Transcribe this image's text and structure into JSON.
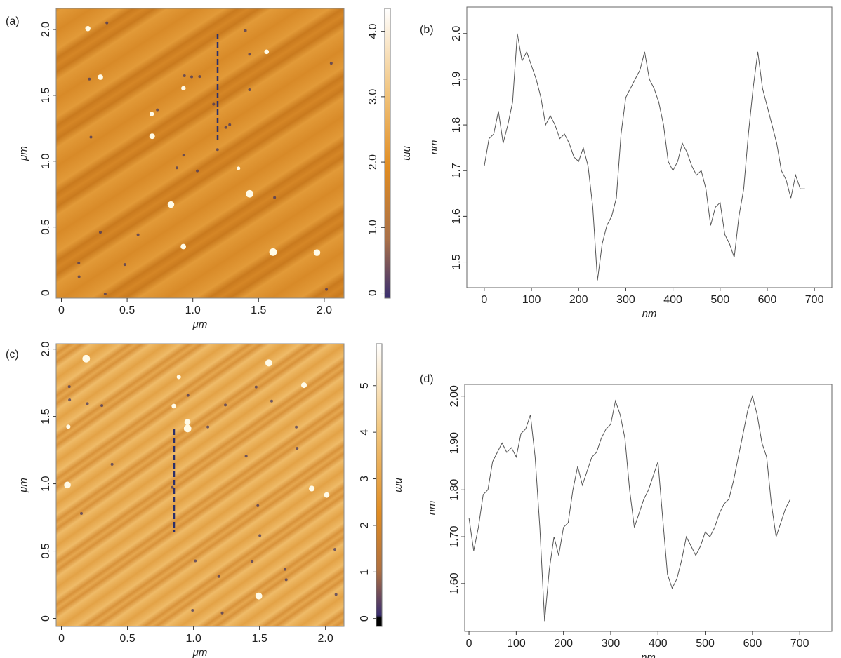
{
  "chart_data": [
    {
      "type": "image",
      "label": "(a)",
      "xlabel": "μm",
      "ylabel": "μm",
      "xlim": [
        -0.04,
        2.15
      ],
      "ylim": [
        -0.04,
        2.16
      ],
      "xticks": [
        0,
        0.5,
        {
          "value": 1,
          "label": "1.0"
        },
        1.5,
        {
          "value": 2,
          "label": "2.0"
        }
      ],
      "yticks": [
        0,
        0.5,
        {
          "value": 1,
          "label": "1.0"
        },
        1.5,
        {
          "value": 2,
          "label": "2.0"
        }
      ],
      "colorbar": {
        "label": "nm",
        "lim": [
          -0.08,
          4.35
        ],
        "ticks": [
          0,
          {
            "value": 1,
            "label": "1.0"
          },
          {
            "value": 2,
            "label": "2.0"
          },
          {
            "value": 3,
            "label": "3.0"
          },
          {
            "value": 4,
            "label": "4.0"
          }
        ]
      }
    },
    {
      "type": "line",
      "label": "(b)",
      "xlabel": "nm",
      "ylabel": "nm",
      "color": "#555555",
      "xlim": [
        -37,
        737
      ],
      "ylim": [
        1.444,
        2.058
      ],
      "xticks": [
        0,
        100,
        200,
        300,
        400,
        500,
        600,
        700
      ],
      "yticks": [
        1.5,
        1.6,
        1.7,
        1.8,
        1.9,
        {
          "value": 2,
          "label": "2.0"
        }
      ],
      "x": [
        0,
        10,
        20,
        30,
        40,
        50,
        60,
        70,
        80,
        90,
        100,
        110,
        120,
        130,
        140,
        150,
        160,
        170,
        180,
        190,
        200,
        210,
        220,
        230,
        240,
        250,
        260,
        270,
        280,
        290,
        300,
        310,
        320,
        330,
        340,
        350,
        360,
        370,
        380,
        390,
        400,
        410,
        420,
        430,
        440,
        450,
        460,
        470,
        480,
        490,
        500,
        510,
        520,
        530,
        540,
        550,
        560,
        570,
        580,
        590,
        600,
        610,
        620,
        630,
        640,
        650,
        660,
        670,
        680
      ],
      "values": [
        1.71,
        1.77,
        1.78,
        1.83,
        1.76,
        1.8,
        1.85,
        2.0,
        1.94,
        1.96,
        1.93,
        1.9,
        1.86,
        1.8,
        1.82,
        1.8,
        1.77,
        1.78,
        1.76,
        1.73,
        1.72,
        1.75,
        1.71,
        1.62,
        1.46,
        1.54,
        1.58,
        1.6,
        1.64,
        1.78,
        1.86,
        1.88,
        1.9,
        1.92,
        1.96,
        1.9,
        1.88,
        1.85,
        1.8,
        1.72,
        1.7,
        1.72,
        1.76,
        1.74,
        1.71,
        1.69,
        1.7,
        1.66,
        1.58,
        1.62,
        1.63,
        1.56,
        1.54,
        1.51,
        1.6,
        1.66,
        1.78,
        1.88,
        1.96,
        1.88,
        1.84,
        1.8,
        1.76,
        1.7,
        1.68,
        1.64,
        1.69,
        1.66,
        1.66
      ]
    },
    {
      "type": "image",
      "label": "(c)",
      "xlabel": "μm",
      "ylabel": "μm",
      "xlim": [
        -0.04,
        2.14
      ],
      "ylim": [
        -0.06,
        2.04
      ],
      "xticks": [
        0,
        0.5,
        {
          "value": 1,
          "label": "1.0"
        },
        1.5,
        {
          "value": 2,
          "label": "2.0"
        }
      ],
      "yticks": [
        0,
        0.5,
        {
          "value": 1,
          "label": "1.0"
        },
        1.5,
        {
          "value": 2,
          "label": "2.0"
        }
      ],
      "colorbar": {
        "label": "nm",
        "lim": [
          -0.17,
          5.9
        ],
        "ticks": [
          0,
          1,
          2,
          3,
          4,
          5
        ]
      }
    },
    {
      "type": "line",
      "label": "(d)",
      "xlabel": "nm",
      "ylabel": "nm",
      "color": "#555555",
      "xlim": [
        -9,
        768
      ],
      "ylim": [
        1.498,
        2.025
      ],
      "xticks": [
        0,
        100,
        200,
        300,
        400,
        500,
        600,
        700
      ],
      "yticks": [
        {
          "value": 1.6,
          "label": "1.60"
        },
        {
          "value": 1.7,
          "label": "1.70"
        },
        {
          "value": 1.8,
          "label": "1.80"
        },
        {
          "value": 1.9,
          "label": "1.90"
        },
        {
          "value": 2,
          "label": "2.00"
        }
      ],
      "x": [
        0,
        10,
        20,
        30,
        40,
        50,
        60,
        70,
        80,
        90,
        100,
        110,
        120,
        130,
        140,
        150,
        160,
        170,
        180,
        190,
        200,
        210,
        220,
        230,
        240,
        250,
        260,
        270,
        280,
        290,
        300,
        310,
        320,
        330,
        340,
        350,
        360,
        370,
        380,
        390,
        400,
        410,
        420,
        430,
        440,
        450,
        460,
        470,
        480,
        490,
        500,
        510,
        520,
        530,
        540,
        550,
        560,
        570,
        580,
        590,
        600,
        610,
        620,
        630,
        640,
        650,
        660,
        670,
        680
      ],
      "values": [
        1.74,
        1.67,
        1.72,
        1.79,
        1.8,
        1.86,
        1.88,
        1.9,
        1.88,
        1.89,
        1.87,
        1.92,
        1.93,
        1.96,
        1.87,
        1.72,
        1.52,
        1.63,
        1.7,
        1.66,
        1.72,
        1.73,
        1.8,
        1.85,
        1.81,
        1.84,
        1.87,
        1.88,
        1.91,
        1.93,
        1.94,
        1.99,
        1.96,
        1.91,
        1.8,
        1.72,
        1.75,
        1.78,
        1.8,
        1.83,
        1.86,
        1.74,
        1.62,
        1.59,
        1.61,
        1.65,
        1.7,
        1.68,
        1.66,
        1.68,
        1.71,
        1.7,
        1.72,
        1.75,
        1.77,
        1.78,
        1.82,
        1.87,
        1.92,
        1.97,
        2.0,
        1.96,
        1.9,
        1.87,
        1.77,
        1.7,
        1.73,
        1.76,
        1.78
      ]
    }
  ]
}
